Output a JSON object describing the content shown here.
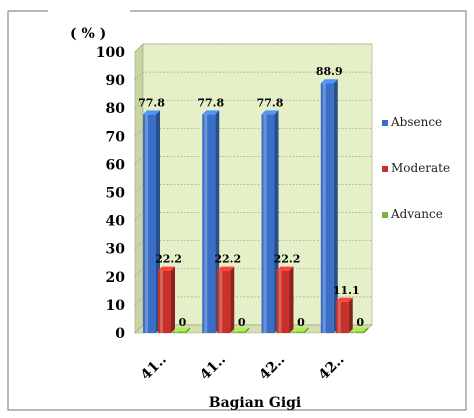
{
  "chart_data": {
    "type": "bar",
    "title": "",
    "ylabel": "( % )",
    "xlabel": "Bagian Gigi",
    "ylim": [
      0,
      100
    ],
    "yticks": [
      0,
      10,
      20,
      30,
      40,
      50,
      60,
      70,
      80,
      90,
      100
    ],
    "categories": [
      "41..",
      "41..",
      "42..",
      "42.."
    ],
    "series": [
      {
        "name": "Absence",
        "values": [
          77.8,
          77.8,
          77.8,
          88.9
        ],
        "color": "#3a6fc8"
      },
      {
        "name": "Moderate",
        "values": [
          22.2,
          22.2,
          22.2,
          11.1
        ],
        "color": "#c8302a"
      },
      {
        "name": "Advance",
        "values": [
          0,
          0,
          0,
          0
        ],
        "color": "#7fb23a"
      }
    ],
    "legend": "right",
    "grid": true,
    "plot_background": "#e6f0c8"
  }
}
